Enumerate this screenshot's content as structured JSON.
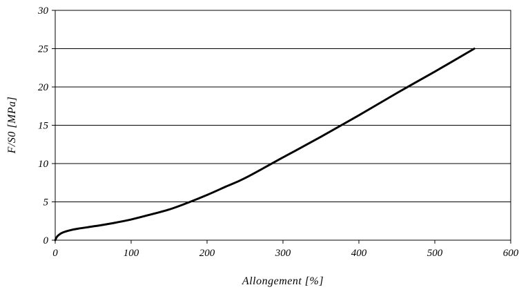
{
  "chart_data": {
    "type": "line",
    "title": "",
    "xlabel": "Allongement [%]",
    "ylabel": "F/S0 [MPa]",
    "xlim": [
      0,
      600
    ],
    "ylim": [
      0,
      30
    ],
    "x_ticks": [
      0,
      100,
      200,
      300,
      400,
      500,
      600
    ],
    "y_ticks": [
      0,
      5,
      10,
      15,
      20,
      25,
      30
    ],
    "x_tick_labels": [
      "0",
      "100",
      "200",
      "300",
      "400",
      "500",
      "600"
    ],
    "y_tick_labels": [
      "0",
      "5",
      "10",
      "15",
      "20",
      "25",
      "30"
    ],
    "grid": {
      "horizontal": true,
      "vertical": false
    },
    "legend": "none",
    "series": [
      {
        "color": "#000000",
        "x": [
          0,
          2,
          5,
          10,
          20,
          30,
          40,
          50,
          60,
          80,
          100,
          120,
          150,
          175,
          200,
          225,
          250,
          300,
          350,
          400,
          450,
          500,
          552
        ],
        "y": [
          0,
          0.4,
          0.7,
          1.0,
          1.3,
          1.5,
          1.65,
          1.8,
          1.95,
          2.3,
          2.7,
          3.2,
          4.0,
          4.9,
          5.9,
          7.0,
          8.1,
          10.8,
          13.5,
          16.3,
          19.2,
          22.0,
          25.0
        ]
      }
    ]
  }
}
